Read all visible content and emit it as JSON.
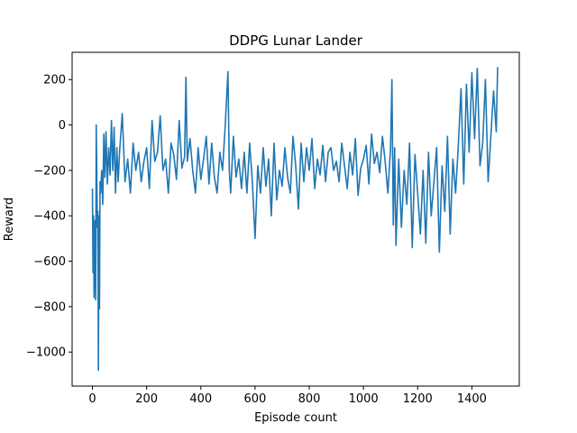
{
  "chart_data": {
    "type": "line",
    "title": "DDPG Lunar Lander",
    "xlabel": "Episode count",
    "ylabel": "Reward",
    "xlim": [
      -75,
      1575
    ],
    "ylim": [
      -1150,
      320
    ],
    "xticks": [
      0,
      200,
      400,
      600,
      800,
      1000,
      1200,
      1400
    ],
    "yticks": [
      -1000,
      -800,
      -600,
      -400,
      -200,
      0,
      200
    ],
    "ytick_labels": [
      "−1000",
      "−800",
      "−600",
      "−400",
      "−200",
      "0",
      "200"
    ],
    "grid": false,
    "series": [
      {
        "color": "#1f77b4",
        "x": [
          0,
          2,
          4,
          6,
          8,
          10,
          12,
          14,
          16,
          18,
          20,
          22,
          24,
          26,
          28,
          30,
          34,
          38,
          42,
          46,
          50,
          55,
          60,
          65,
          70,
          75,
          80,
          85,
          90,
          95,
          100,
          110,
          120,
          130,
          140,
          150,
          160,
          170,
          180,
          190,
          200,
          210,
          220,
          230,
          240,
          250,
          260,
          270,
          280,
          290,
          300,
          310,
          320,
          330,
          340,
          345,
          350,
          360,
          370,
          380,
          390,
          400,
          410,
          420,
          430,
          440,
          450,
          460,
          470,
          480,
          490,
          500,
          505,
          510,
          520,
          530,
          540,
          550,
          560,
          570,
          580,
          590,
          600,
          610,
          620,
          630,
          640,
          650,
          660,
          670,
          680,
          690,
          700,
          710,
          720,
          730,
          740,
          750,
          760,
          770,
          780,
          790,
          800,
          810,
          820,
          830,
          840,
          850,
          860,
          870,
          880,
          890,
          900,
          910,
          920,
          930,
          940,
          950,
          960,
          970,
          980,
          990,
          1000,
          1010,
          1020,
          1030,
          1040,
          1050,
          1060,
          1070,
          1080,
          1090,
          1100,
          1105,
          1110,
          1115,
          1120,
          1130,
          1140,
          1150,
          1160,
          1170,
          1180,
          1190,
          1200,
          1210,
          1220,
          1230,
          1240,
          1250,
          1260,
          1270,
          1280,
          1290,
          1300,
          1310,
          1320,
          1330,
          1340,
          1350,
          1360,
          1370,
          1380,
          1390,
          1400,
          1410,
          1420,
          1430,
          1440,
          1450,
          1460,
          1470,
          1480,
          1490,
          1495
        ],
        "y": [
          -280,
          -650,
          -400,
          -760,
          -450,
          -420,
          -770,
          0,
          -210,
          -450,
          -380,
          -1080,
          -400,
          -810,
          -250,
          -300,
          -200,
          -350,
          -40,
          -230,
          -30,
          -260,
          -100,
          -220,
          20,
          -200,
          -10,
          -300,
          -100,
          -250,
          -120,
          50,
          -250,
          -150,
          -300,
          -80,
          -200,
          -120,
          -250,
          -160,
          -100,
          -280,
          20,
          -160,
          -120,
          40,
          -200,
          -150,
          -300,
          -80,
          -130,
          -240,
          20,
          -190,
          -140,
          210,
          -160,
          -60,
          -200,
          -300,
          -100,
          -240,
          -150,
          -50,
          -260,
          -80,
          -230,
          -300,
          -120,
          -200,
          0,
          235,
          -200,
          -300,
          -50,
          -230,
          -150,
          -280,
          -120,
          -300,
          -80,
          -250,
          -500,
          -180,
          -300,
          -100,
          -270,
          -150,
          -400,
          -80,
          -330,
          -200,
          -270,
          -100,
          -230,
          -300,
          -50,
          -180,
          -370,
          -80,
          -250,
          -100,
          -200,
          -60,
          -280,
          -150,
          -220,
          -90,
          -250,
          -120,
          -100,
          -200,
          -160,
          -250,
          -80,
          -180,
          -280,
          -120,
          -220,
          -60,
          -310,
          -190,
          -150,
          -90,
          -260,
          -40,
          -170,
          -120,
          -210,
          -50,
          -160,
          -300,
          -100,
          200,
          -440,
          -100,
          -530,
          -150,
          -450,
          -200,
          -350,
          -80,
          -540,
          -130,
          -300,
          -480,
          -200,
          -520,
          -120,
          -400,
          -250,
          -100,
          -560,
          -180,
          -380,
          -50,
          -480,
          -150,
          -300,
          -90,
          160,
          -260,
          180,
          -120,
          230,
          -60,
          250,
          -180,
          -80,
          200,
          -250,
          -50,
          150,
          -30,
          255
        ],
        "notes": []
      }
    ]
  }
}
